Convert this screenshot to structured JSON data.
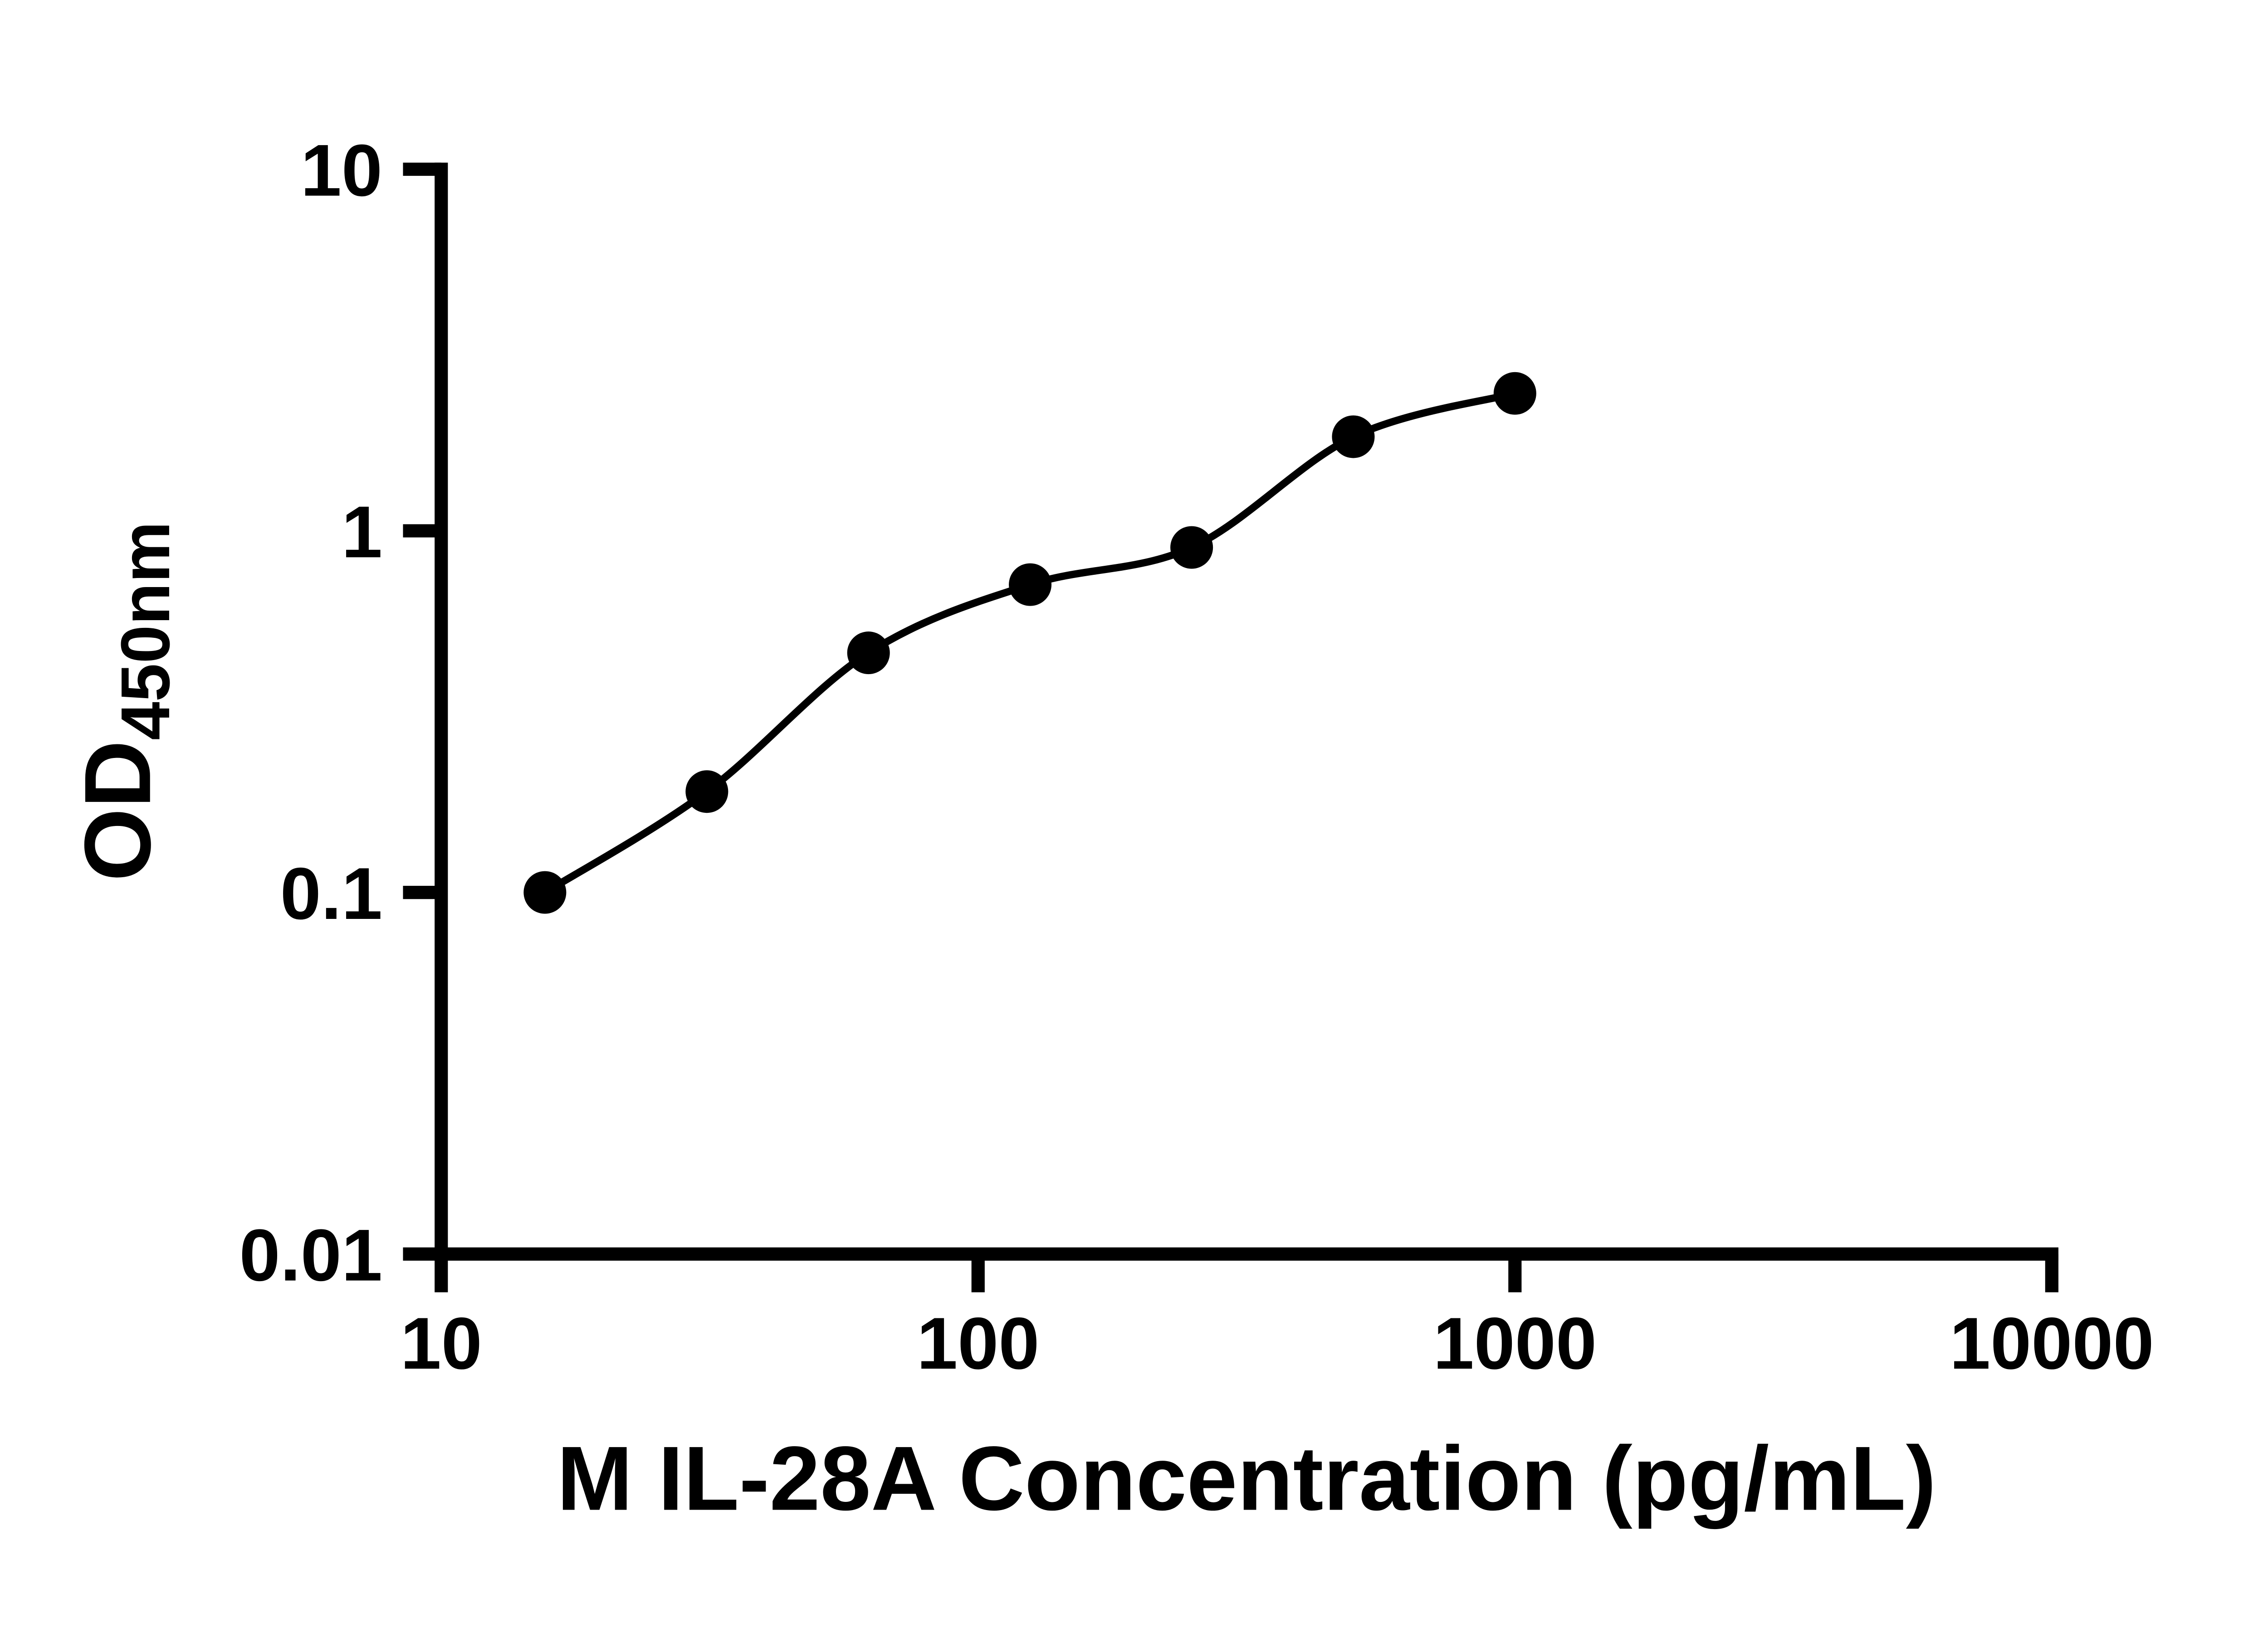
{
  "chart_data": {
    "type": "scatter",
    "title": "",
    "xlabel": "M IL-28A Concentration (pg/mL)",
    "ylabel_main": "OD",
    "ylabel_subscript": "450nm",
    "x_scale": "log",
    "y_scale": "log",
    "xlim": [
      10,
      10000
    ],
    "ylim": [
      0.01,
      10
    ],
    "x_tick_values": [
      10,
      100,
      1000,
      10000
    ],
    "x_tick_labels": [
      "10",
      "100",
      "1000",
      "10000"
    ],
    "y_tick_values": [
      0.01,
      0.1,
      1,
      10
    ],
    "y_tick_labels": [
      "0.01",
      "0.1",
      "1",
      "10"
    ],
    "grid": false,
    "legend": null,
    "points": {
      "x": [
        15.6,
        31.25,
        62.5,
        125,
        250,
        500,
        1000
      ],
      "y": [
        0.1,
        0.19,
        0.46,
        0.71,
        0.9,
        1.82,
        2.4
      ]
    },
    "fit_curve": true,
    "colors": {
      "foreground": "#000000",
      "background": "#ffffff"
    }
  }
}
